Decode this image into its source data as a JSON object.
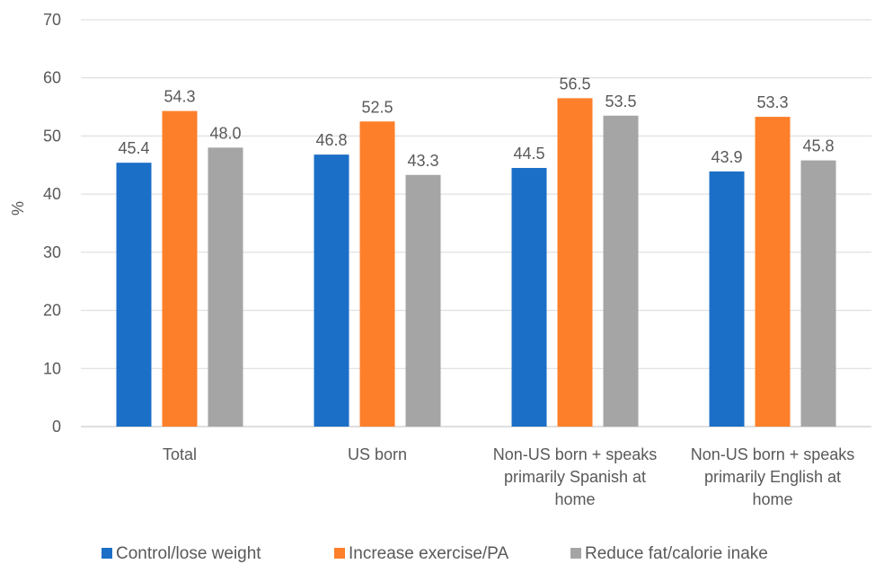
{
  "chart_data": {
    "type": "bar",
    "ylabel": "%",
    "ylim": [
      0,
      70
    ],
    "yticks": [
      0,
      10,
      20,
      30,
      40,
      50,
      60,
      70
    ],
    "grid": true,
    "legend_position": "bottom",
    "categories": [
      [
        "Total"
      ],
      [
        "US born"
      ],
      [
        "Non-US born + speaks",
        "primarily Spanish at",
        "home"
      ],
      [
        "Non-US born + speaks",
        "primarily English at",
        "home"
      ]
    ],
    "series": [
      {
        "name": "Control/lose weight",
        "color": "#1b6fc7",
        "values": [
          45.4,
          46.8,
          44.5,
          43.9
        ],
        "labels": [
          "45.4",
          "46.8",
          "44.5",
          "43.9"
        ]
      },
      {
        "name": "Increase exercise/PA",
        "color": "#fd7f2a",
        "values": [
          54.3,
          52.5,
          56.5,
          53.3
        ],
        "labels": [
          "54.3",
          "52.5",
          "56.5",
          "53.3"
        ]
      },
      {
        "name": "Reduce fat/calorie inake",
        "color": "#a5a5a5",
        "values": [
          48.0,
          43.3,
          53.5,
          45.8
        ],
        "labels": [
          "48.0",
          "43.3",
          "53.5",
          "45.8"
        ]
      }
    ]
  }
}
